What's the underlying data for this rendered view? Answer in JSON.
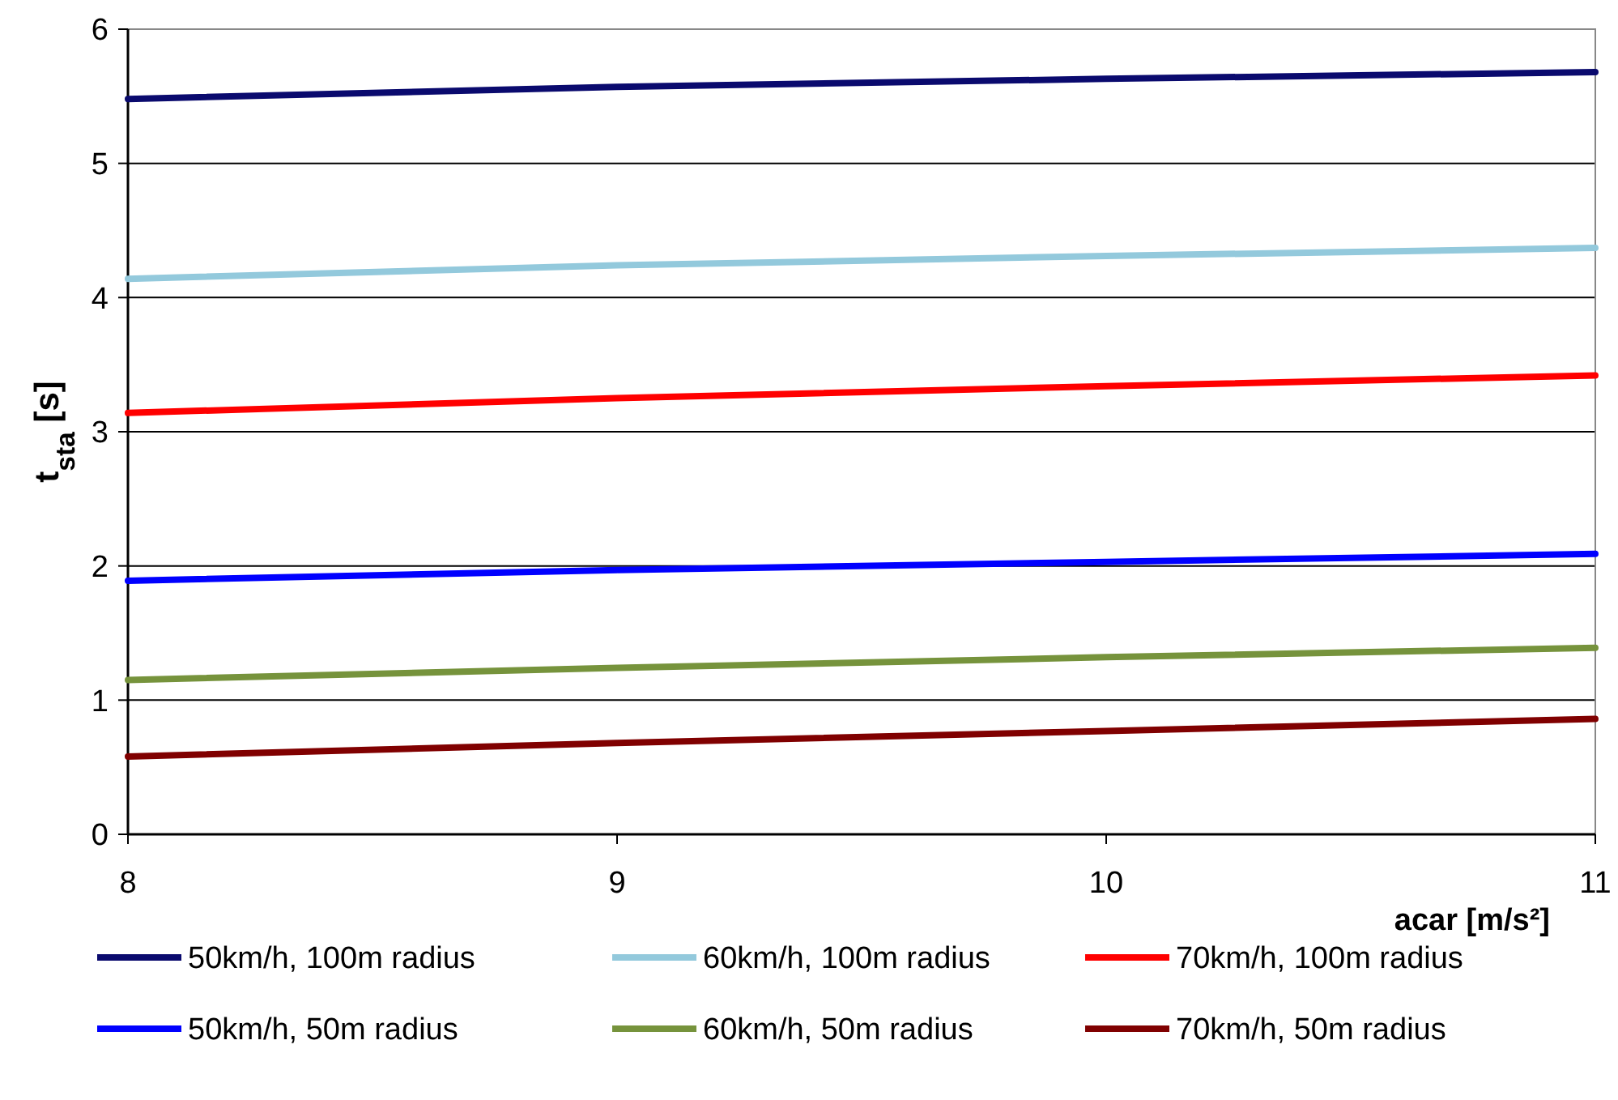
{
  "chart_data": {
    "type": "line",
    "xlabel": "acar [m/s²]",
    "ylabel": "t$_{sta}$ [s]",
    "x": [
      8,
      9,
      10,
      11
    ],
    "xlim": [
      8,
      11
    ],
    "xticks": [
      8,
      9,
      10,
      11
    ],
    "ylim": [
      0,
      6
    ],
    "yticks": [
      0,
      1,
      2,
      3,
      4,
      5,
      6
    ],
    "grid": "y",
    "legend": "bottom",
    "line_style": "solid",
    "series": [
      {
        "name": "50km/h, 100m radius",
        "color": "#0a0a6e",
        "values": [
          5.48,
          5.57,
          5.63,
          5.68
        ]
      },
      {
        "name": "60km/h, 100m radius",
        "color": "#93c9dc",
        "values": [
          4.14,
          4.24,
          4.31,
          4.37
        ]
      },
      {
        "name": "70km/h, 100m radius",
        "color": "#ff0000",
        "values": [
          3.14,
          3.25,
          3.34,
          3.42
        ]
      },
      {
        "name": "50km/h, 50m radius",
        "color": "#0000ff",
        "values": [
          1.89,
          1.97,
          2.03,
          2.09
        ]
      },
      {
        "name": "60km/h, 50m radius",
        "color": "#76933c",
        "values": [
          1.15,
          1.24,
          1.32,
          1.39
        ]
      },
      {
        "name": "70km/h, 50m radius",
        "color": "#800000",
        "values": [
          0.58,
          0.68,
          0.77,
          0.86
        ]
      }
    ]
  }
}
